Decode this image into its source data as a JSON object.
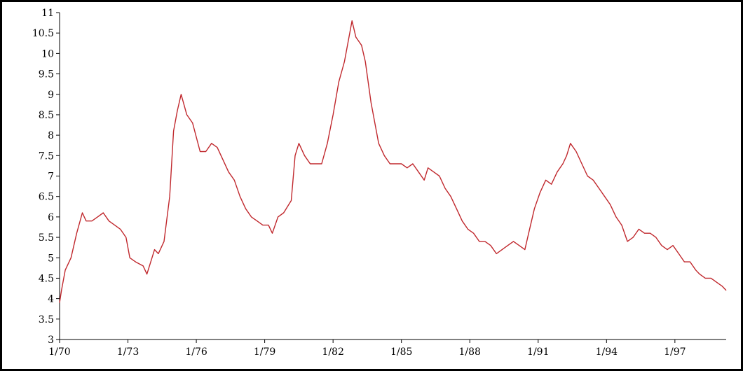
{
  "chart_data": {
    "type": "line",
    "title": "",
    "xlabel": "",
    "ylabel": "",
    "xlim": [
      "1970-01",
      "1999-04"
    ],
    "ylim": [
      3,
      11
    ],
    "grid": false,
    "legend": "none",
    "colors": {
      "line": "#c0282d",
      "axis": "#000000"
    },
    "yticks": [
      "3",
      "3.5",
      "4",
      "4.5",
      "5",
      "5.5",
      "6",
      "6.5",
      "7",
      "7.5",
      "8",
      "8.5",
      "9",
      "9.5",
      "10",
      "10.5",
      "11"
    ],
    "xticks": [
      {
        "label": "1/70",
        "date": "1970-01"
      },
      {
        "label": "1/73",
        "date": "1973-01"
      },
      {
        "label": "1/76",
        "date": "1976-01"
      },
      {
        "label": "1/79",
        "date": "1979-01"
      },
      {
        "label": "1/82",
        "date": "1982-01"
      },
      {
        "label": "1/85",
        "date": "1985-01"
      },
      {
        "label": "1/88",
        "date": "1988-01"
      },
      {
        "label": "1/91",
        "date": "1991-01"
      },
      {
        "label": "1/94",
        "date": "1994-01"
      },
      {
        "label": "1/97",
        "date": "1997-01"
      }
    ],
    "series": [
      {
        "points": [
          [
            "1970-01",
            3.9
          ],
          [
            "1970-02",
            4.2
          ],
          [
            "1970-04",
            4.7
          ],
          [
            "1970-07",
            5.0
          ],
          [
            "1970-10",
            5.6
          ],
          [
            "1971-01",
            6.1
          ],
          [
            "1971-03",
            5.9
          ],
          [
            "1971-06",
            5.9
          ],
          [
            "1971-09",
            6.0
          ],
          [
            "1971-12",
            6.1
          ],
          [
            "1972-03",
            5.9
          ],
          [
            "1972-06",
            5.8
          ],
          [
            "1972-09",
            5.7
          ],
          [
            "1972-12",
            5.5
          ],
          [
            "1973-02",
            5.0
          ],
          [
            "1973-05",
            4.9
          ],
          [
            "1973-09",
            4.8
          ],
          [
            "1973-11",
            4.6
          ],
          [
            "1974-03",
            5.2
          ],
          [
            "1974-05",
            5.1
          ],
          [
            "1974-08",
            5.4
          ],
          [
            "1974-11",
            6.5
          ],
          [
            "1975-01",
            8.1
          ],
          [
            "1975-03",
            8.6
          ],
          [
            "1975-05",
            9.0
          ],
          [
            "1975-08",
            8.5
          ],
          [
            "1975-11",
            8.3
          ],
          [
            "1976-03",
            7.6
          ],
          [
            "1976-06",
            7.6
          ],
          [
            "1976-09",
            7.8
          ],
          [
            "1976-12",
            7.7
          ],
          [
            "1977-03",
            7.4
          ],
          [
            "1977-06",
            7.1
          ],
          [
            "1977-09",
            6.9
          ],
          [
            "1977-12",
            6.5
          ],
          [
            "1978-03",
            6.2
          ],
          [
            "1978-06",
            6.0
          ],
          [
            "1978-09",
            5.9
          ],
          [
            "1978-12",
            5.8
          ],
          [
            "1979-03",
            5.8
          ],
          [
            "1979-05",
            5.6
          ],
          [
            "1979-08",
            6.0
          ],
          [
            "1979-11",
            6.1
          ],
          [
            "1980-03",
            6.4
          ],
          [
            "1980-05",
            7.5
          ],
          [
            "1980-07",
            7.8
          ],
          [
            "1980-10",
            7.5
          ],
          [
            "1981-01",
            7.3
          ],
          [
            "1981-04",
            7.3
          ],
          [
            "1981-07",
            7.3
          ],
          [
            "1981-10",
            7.8
          ],
          [
            "1982-01",
            8.5
          ],
          [
            "1982-04",
            9.3
          ],
          [
            "1982-07",
            9.8
          ],
          [
            "1982-11",
            10.8
          ],
          [
            "1983-01",
            10.4
          ],
          [
            "1983-04",
            10.2
          ],
          [
            "1983-06",
            9.8
          ],
          [
            "1983-09",
            8.8
          ],
          [
            "1984-01",
            7.8
          ],
          [
            "1984-04",
            7.5
          ],
          [
            "1984-07",
            7.3
          ],
          [
            "1984-10",
            7.3
          ],
          [
            "1985-01",
            7.3
          ],
          [
            "1985-04",
            7.2
          ],
          [
            "1985-07",
            7.3
          ],
          [
            "1985-10",
            7.1
          ],
          [
            "1986-01",
            6.9
          ],
          [
            "1986-03",
            7.2
          ],
          [
            "1986-06",
            7.1
          ],
          [
            "1986-09",
            7.0
          ],
          [
            "1986-12",
            6.7
          ],
          [
            "1987-03",
            6.5
          ],
          [
            "1987-06",
            6.2
          ],
          [
            "1987-09",
            5.9
          ],
          [
            "1987-12",
            5.7
          ],
          [
            "1988-03",
            5.6
          ],
          [
            "1988-06",
            5.4
          ],
          [
            "1988-09",
            5.4
          ],
          [
            "1988-12",
            5.3
          ],
          [
            "1989-03",
            5.1
          ],
          [
            "1989-06",
            5.2
          ],
          [
            "1989-09",
            5.3
          ],
          [
            "1989-12",
            5.4
          ],
          [
            "1990-03",
            5.3
          ],
          [
            "1990-06",
            5.2
          ],
          [
            "1990-08",
            5.6
          ],
          [
            "1990-11",
            6.2
          ],
          [
            "1991-02",
            6.6
          ],
          [
            "1991-05",
            6.9
          ],
          [
            "1991-08",
            6.8
          ],
          [
            "1991-11",
            7.1
          ],
          [
            "1992-02",
            7.3
          ],
          [
            "1992-04",
            7.5
          ],
          [
            "1992-06",
            7.8
          ],
          [
            "1992-09",
            7.6
          ],
          [
            "1992-12",
            7.3
          ],
          [
            "1993-03",
            7.0
          ],
          [
            "1993-06",
            6.9
          ],
          [
            "1993-09",
            6.7
          ],
          [
            "1993-12",
            6.5
          ],
          [
            "1994-03",
            6.3
          ],
          [
            "1994-06",
            6.0
          ],
          [
            "1994-09",
            5.8
          ],
          [
            "1994-12",
            5.4
          ],
          [
            "1995-03",
            5.5
          ],
          [
            "1995-06",
            5.7
          ],
          [
            "1995-09",
            5.6
          ],
          [
            "1995-12",
            5.6
          ],
          [
            "1996-03",
            5.5
          ],
          [
            "1996-06",
            5.3
          ],
          [
            "1996-09",
            5.2
          ],
          [
            "1996-12",
            5.3
          ],
          [
            "1997-03",
            5.1
          ],
          [
            "1997-06",
            4.9
          ],
          [
            "1997-09",
            4.9
          ],
          [
            "1997-12",
            4.7
          ],
          [
            "1998-02",
            4.6
          ],
          [
            "1998-05",
            4.5
          ],
          [
            "1998-08",
            4.5
          ],
          [
            "1998-11",
            4.4
          ],
          [
            "1999-02",
            4.3
          ],
          [
            "1999-04",
            4.2
          ]
        ]
      }
    ]
  }
}
